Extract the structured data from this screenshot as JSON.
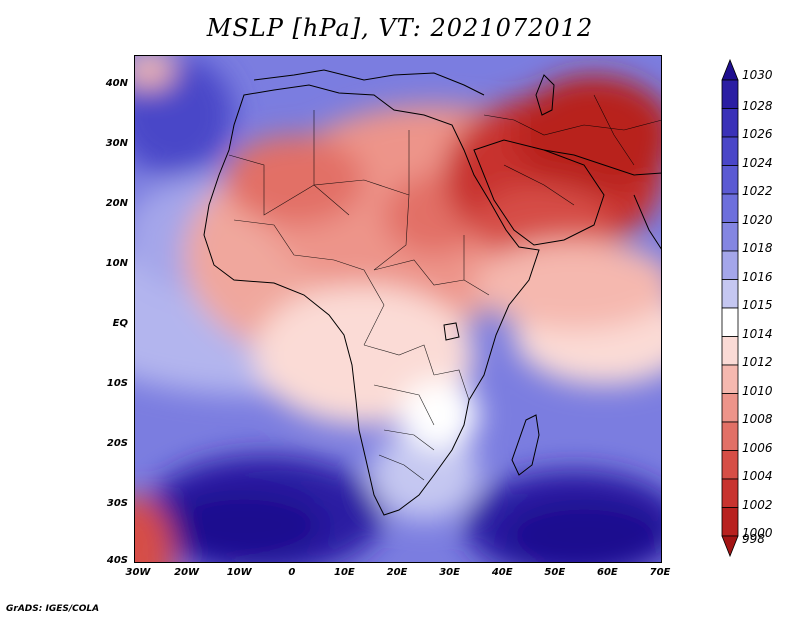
{
  "title": "MSLP [hPa], VT: 2021072012",
  "footer": "GrADS: IGES/COLA",
  "axes": {
    "x_ticks": [
      "30W",
      "20W",
      "10W",
      "0",
      "10E",
      "20E",
      "30E",
      "40E",
      "50E",
      "60E",
      "70E"
    ],
    "y_ticks": [
      "40N",
      "30N",
      "20N",
      "10N",
      "EQ",
      "10S",
      "20S",
      "30S",
      "40S"
    ]
  },
  "colorbar": {
    "levels": [
      {
        "label": "1030",
        "color": "#1f0f8f"
      },
      {
        "label": "1028",
        "color": "#2b1ea3"
      },
      {
        "label": "1026",
        "color": "#3a31b8"
      },
      {
        "label": "1024",
        "color": "#4a46c8"
      },
      {
        "label": "1022",
        "color": "#5b5ad3"
      },
      {
        "label": "1020",
        "color": "#6d6fdc"
      },
      {
        "label": "1018",
        "color": "#8486e2"
      },
      {
        "label": "1016",
        "color": "#a4a6ea"
      },
      {
        "label": "1015",
        "color": "#c5c7f1"
      },
      {
        "label": "1014",
        "color": "#ffffff"
      },
      {
        "label": "1012",
        "color": "#fbdbd6"
      },
      {
        "label": "1010",
        "color": "#f5b8af"
      },
      {
        "label": "1008",
        "color": "#ed948a"
      },
      {
        "label": "1006",
        "color": "#e27066"
      },
      {
        "label": "1004",
        "color": "#d64e46"
      },
      {
        "label": "1002",
        "color": "#c8332f"
      },
      {
        "label": "1000",
        "color": "#b8211f"
      },
      {
        "label": "998",
        "color": "#a31414"
      }
    ]
  }
}
